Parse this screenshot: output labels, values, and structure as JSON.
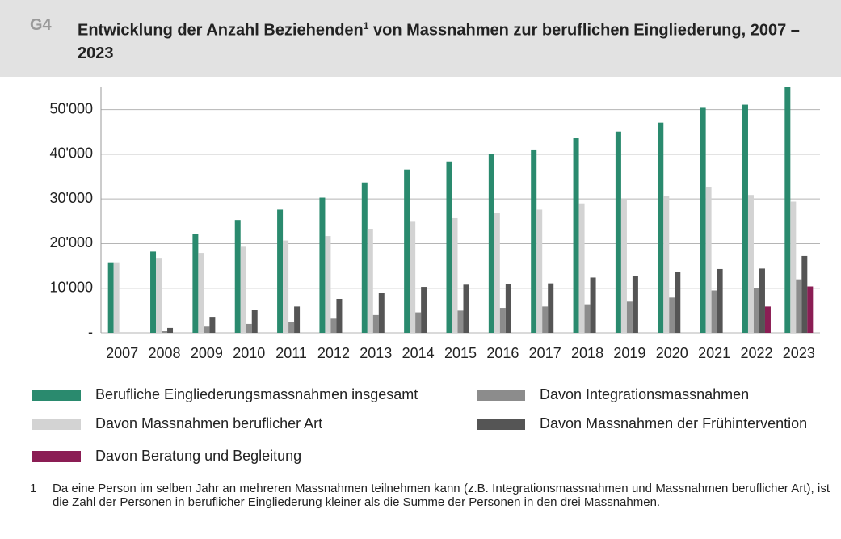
{
  "label": "G4",
  "chart_data": {
    "type": "bar",
    "title_parts": [
      "Entwicklung der Anzahl Beziehenden",
      "1",
      " von Massnahmen zur beruflichen Eingliederung, 2007 – 2023"
    ],
    "categories": [
      "2007",
      "2008",
      "2009",
      "2010",
      "2011",
      "2012",
      "2013",
      "2014",
      "2015",
      "2016",
      "2017",
      "2018",
      "2019",
      "2020",
      "2021",
      "2022",
      "2023"
    ],
    "series": [
      {
        "name": "Berufliche Eingliederungsmassnahmen insgesamt",
        "color": "#2a8a6e",
        "values": [
          15800,
          18200,
          22100,
          25300,
          27600,
          30300,
          33700,
          36600,
          38400,
          40000,
          40900,
          43600,
          45100,
          47100,
          50400,
          51100,
          55000
        ]
      },
      {
        "name": "Davon Massnahmen beruflicher Art",
        "color": "#d3d3d3",
        "values": [
          15800,
          16800,
          17900,
          19300,
          20700,
          21700,
          23300,
          24900,
          25700,
          26900,
          27600,
          29000,
          30000,
          30700,
          32600,
          30900,
          29400
        ]
      },
      {
        "name": "Davon Integrationsmassnahmen",
        "color": "#8c8c8c",
        "values": [
          null,
          500,
          1400,
          2000,
          2400,
          3200,
          4000,
          4600,
          5000,
          5600,
          5900,
          6400,
          7000,
          7900,
          9500,
          10100,
          12000
        ]
      },
      {
        "name": "Davon Massnahmen der Frühintervention",
        "color": "#555555",
        "values": [
          null,
          1100,
          3600,
          5100,
          5900,
          7600,
          9000,
          10300,
          10800,
          11000,
          11100,
          12400,
          12800,
          13600,
          14300,
          14400,
          17200
        ]
      },
      {
        "name": "Davon Beratung und Begleitung",
        "color": "#8b1d54",
        "values": [
          null,
          null,
          null,
          null,
          null,
          null,
          null,
          null,
          null,
          null,
          null,
          null,
          null,
          null,
          null,
          5900,
          10400
        ]
      }
    ],
    "ylim": [
      0,
      55000
    ],
    "yticks": [
      {
        "value": 0,
        "label": "-"
      },
      {
        "value": 10000,
        "label": "10'000"
      },
      {
        "value": 20000,
        "label": "20'000"
      },
      {
        "value": 30000,
        "label": "30'000"
      },
      {
        "value": 40000,
        "label": "40'000"
      },
      {
        "value": 50000,
        "label": "50'000"
      }
    ],
    "grid": true
  },
  "footnote": {
    "number": "1",
    "text": "Da eine Person im selben Jahr an mehreren Massnahmen teilnehmen kann (z.B. Integrationsmassnahmen und Massnahmen beruflicher Art), ist die Zahl der Personen in beruflicher Eingliederung kleiner als die Summe der Personen in den drei Massnahmen."
  }
}
